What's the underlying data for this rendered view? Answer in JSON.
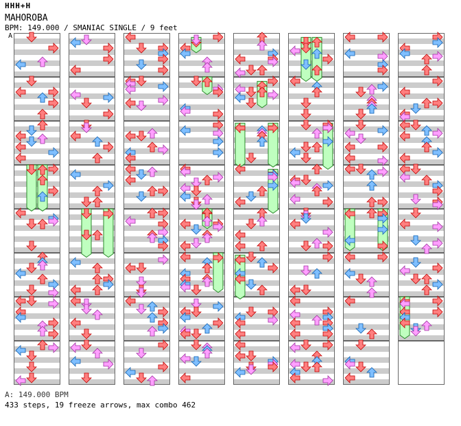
{
  "header": {
    "logo": "HHH+H",
    "song_title": "MAHOROBA",
    "meta_line": "BPM: 149.000 / SMANIAC SINGLE / 9 feet"
  },
  "section_marker": "A",
  "footer": {
    "bpm_note": "A: 149.000 BPM",
    "summary": "433 steps, 19 freeze arrows, max combo 462"
  },
  "chart_data": {
    "type": "step-chart",
    "mode": "SINGLE",
    "difficulty": "SMANIAC",
    "feet": 9,
    "bpm": 149.0,
    "steps": 433,
    "freeze_arrows": 19,
    "max_combo": 462,
    "columns": 8,
    "measures_per_column": 8,
    "lanes": [
      "left",
      "down",
      "up",
      "right"
    ],
    "colors": {
      "quarter": "#ff7f7f",
      "eighth": "#7fbfff",
      "sixteenth": "#ff9fff",
      "freeze": "#bfffbf",
      "stripe": "#cccccc"
    }
  }
}
